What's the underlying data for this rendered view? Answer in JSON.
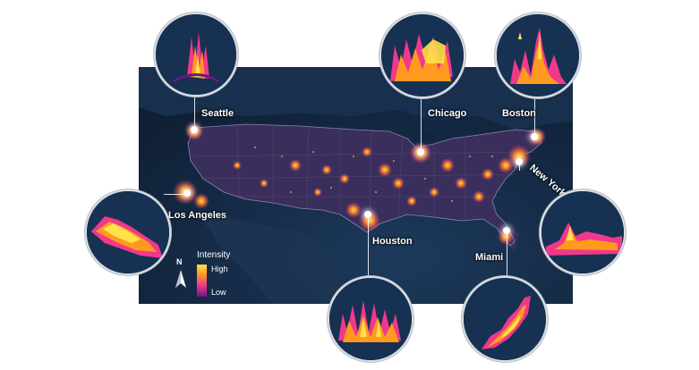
{
  "map": {
    "colors": {
      "background": "#13263f",
      "land": "#3a2f5c",
      "glow_low": "#6a1880",
      "glow_mid": "#f0388c",
      "glow_high": "#ffe14a"
    }
  },
  "cities": [
    {
      "id": "seattle",
      "label": "Seattle"
    },
    {
      "id": "chicago",
      "label": "Chicago"
    },
    {
      "id": "boston",
      "label": "Boston"
    },
    {
      "id": "new-york",
      "label": "New York"
    },
    {
      "id": "los-angeles",
      "label": "Los Angeles"
    },
    {
      "id": "houston",
      "label": "Houston"
    },
    {
      "id": "miami",
      "label": "Miami"
    }
  ],
  "legend": {
    "title": "Intensity",
    "high_label": "High",
    "low_label": "Low"
  },
  "compass": {
    "letter": "N",
    "icon": "north-arrow-icon"
  }
}
